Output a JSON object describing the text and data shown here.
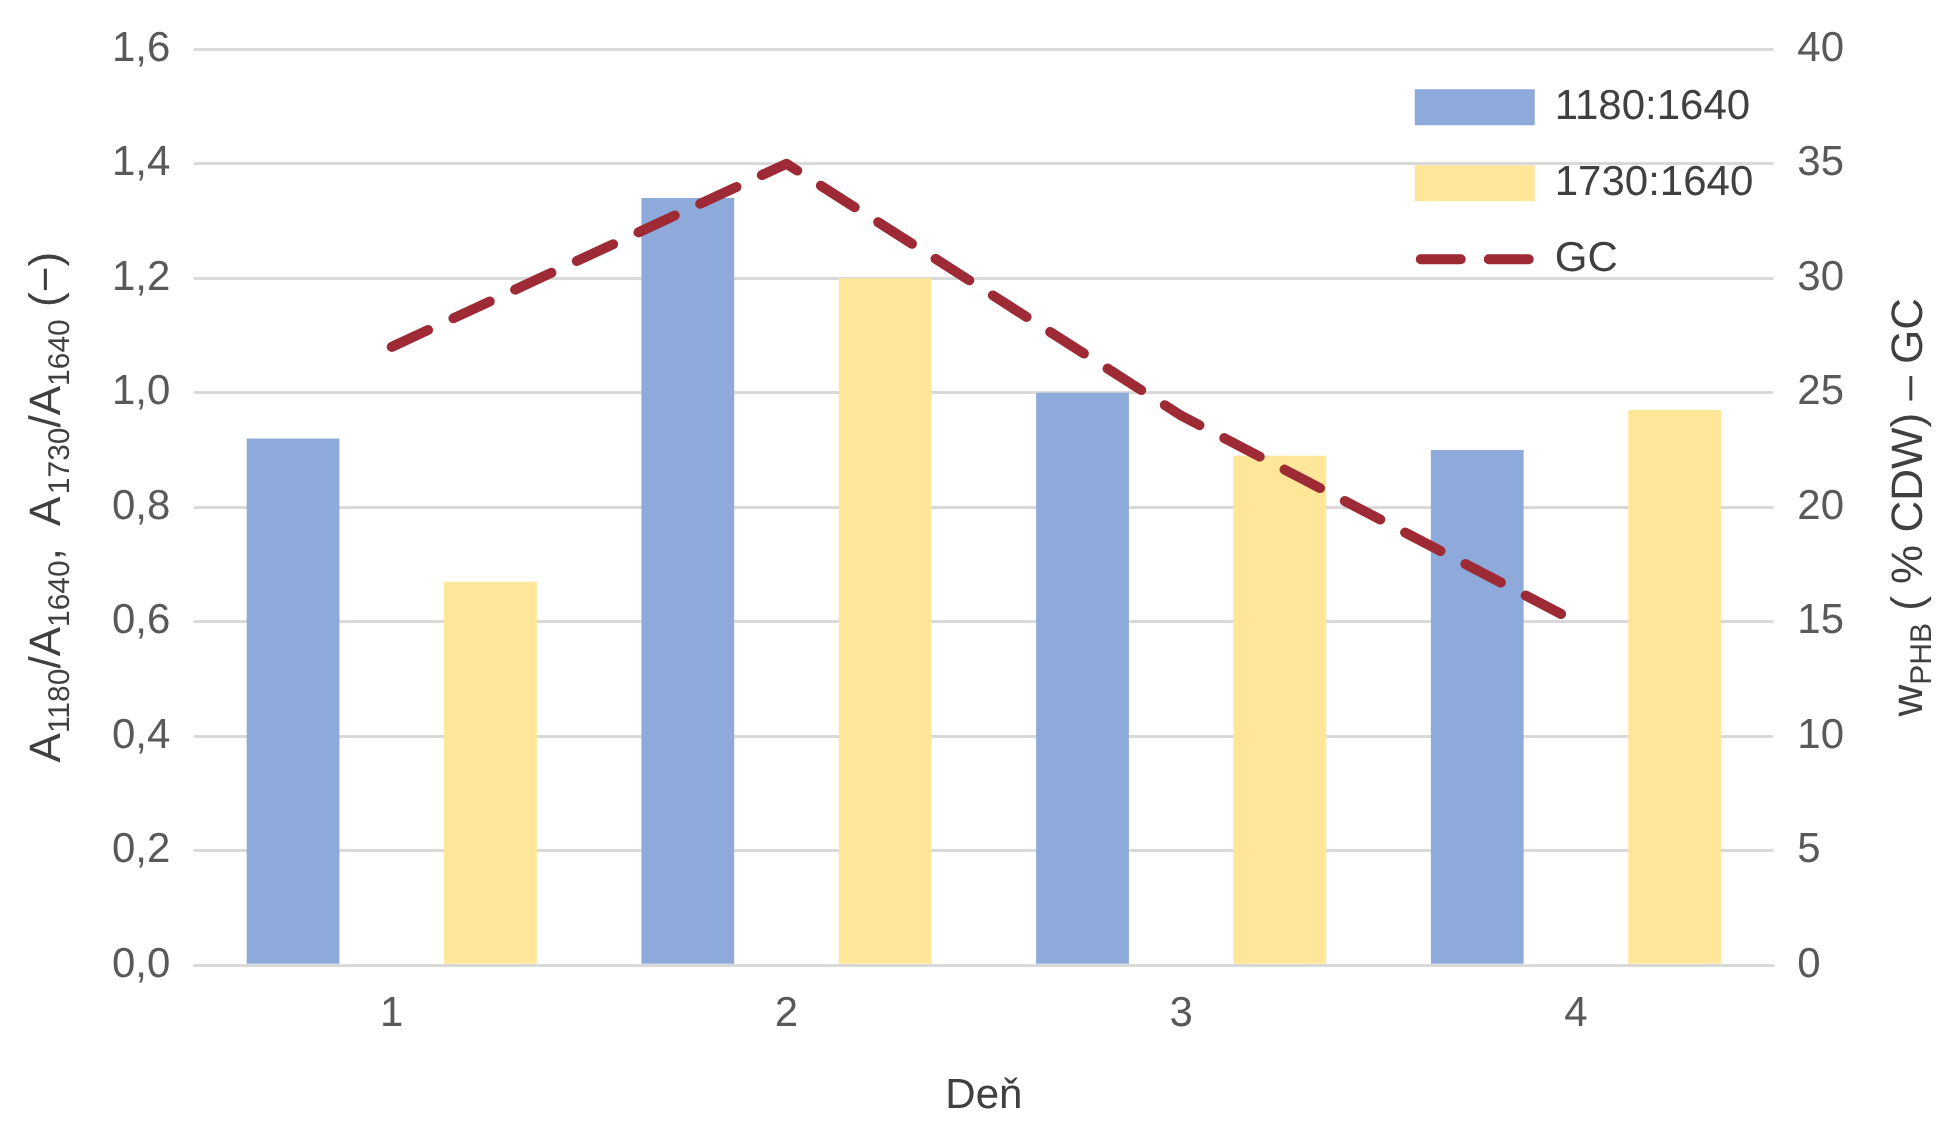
{
  "chart_data": {
    "type": "bar",
    "xlabel": "Deň",
    "ylabel": "A$_{1180}$/A$_{1640}$,  A$_{1730}$/A$_{1640}$ (−)",
    "y2label": "w$_{PHB}$ ( % CDW) – GC",
    "categories": [
      "1",
      "2",
      "3",
      "4"
    ],
    "series": [
      {
        "name": "1180:1640",
        "color": "#8eaadb",
        "values": [
          0.92,
          1.34,
          1.0,
          0.9
        ]
      },
      {
        "name": "1730:1640",
        "color": "#ffe699",
        "values": [
          0.67,
          1.2,
          0.89,
          0.97
        ]
      },
      {
        "name": "GC",
        "type": "line",
        "axis": "y2",
        "color": "#9e2a35",
        "line_style": "dashed",
        "values": [
          27,
          35,
          24,
          15
        ]
      }
    ],
    "ylim": [
      0,
      1.6
    ],
    "yticks": [
      {
        "value": 0,
        "label": "0,0"
      },
      {
        "value": 0.2,
        "label": "0,2"
      },
      {
        "value": 0.4,
        "label": "0,4"
      },
      {
        "value": 0.6,
        "label": "0,6"
      },
      {
        "value": 0.8,
        "label": "0,8"
      },
      {
        "value": 1.0,
        "label": "1,0"
      },
      {
        "value": 1.2,
        "label": "1,2"
      },
      {
        "value": 1.4,
        "label": "1,4"
      },
      {
        "value": 1.6,
        "label": "1,6"
      }
    ],
    "y2lim": [
      0,
      40
    ],
    "y2ticks": [
      0,
      5,
      10,
      15,
      20,
      25,
      30,
      35,
      40
    ],
    "grid": "y",
    "legend": "top right",
    "marker": "none"
  }
}
